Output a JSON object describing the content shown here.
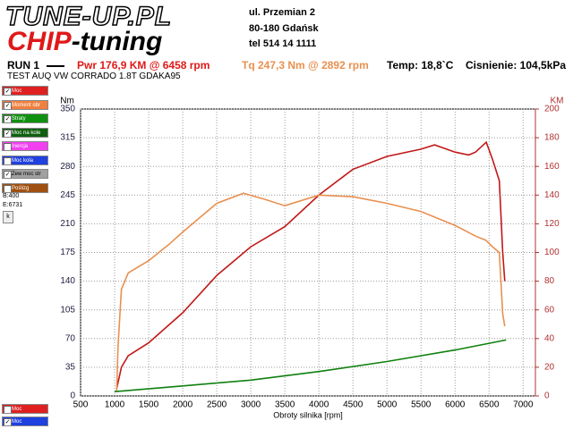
{
  "header": {
    "logo_top": "TUNE-UP.PL",
    "logo_chip": "CHIP",
    "logo_tuning": "-tuning",
    "address": [
      "ul. Przemian 2",
      "80-180 Gdańsk",
      "tel 514 14 1111"
    ],
    "run": "RUN 1",
    "power_summary": "Pwr  176,9 KM @ 6458 rpm",
    "torque_summary": "Tq 247,3 Nm @ 2892 rpm",
    "temperature": "Temp: 18,8`C",
    "pressure": "Cisnienie: 104,5kPa",
    "test_name": "TEST AUQ VW CORRADO 1.8T GDAKA95"
  },
  "panel": {
    "items": [
      {
        "label": "Moc",
        "color": "#e02020",
        "checked": true
      },
      {
        "label": "Moment obr",
        "color": "#f08040",
        "checked": true
      },
      {
        "label": "Straty",
        "color": "#109010",
        "checked": true
      },
      {
        "label": "Moc na kole",
        "color": "#106010",
        "checked": true
      },
      {
        "label": "Inercja",
        "color": "#f040f0",
        "checked": false
      },
      {
        "label": "Moc kola",
        "color": "#2040e0",
        "checked": false
      },
      {
        "label": "Zew moc str",
        "color": "#a0a0a0",
        "checked": true
      },
      {
        "label": "Poślizg",
        "color": "#a05010",
        "checked": false
      }
    ],
    "begin": "B:400",
    "end": "E:6731",
    "button": "k",
    "bottom": [
      {
        "label": "Moc",
        "color": "#e02020",
        "checked": false
      },
      {
        "label": "Moc",
        "color": "#2040e0",
        "checked": true
      }
    ]
  },
  "chart_data": {
    "type": "line",
    "xlabel": "Obroty silnika [rpm]",
    "ylabel": "Nm",
    "y2label": "KM",
    "xlim": [
      500,
      7180
    ],
    "xticks": [
      500,
      1000,
      1500,
      2000,
      2500,
      3000,
      3500,
      4000,
      4500,
      5000,
      5500,
      6000,
      6500,
      7000
    ],
    "ylim": [
      0,
      350
    ],
    "yticks": [
      0,
      35,
      70,
      105,
      140,
      175,
      210,
      245,
      280,
      315,
      350
    ],
    "y2lim": [
      0,
      200
    ],
    "y2ticks": [
      0,
      20,
      40,
      60,
      80,
      100,
      120,
      140,
      160,
      180,
      200
    ],
    "grid": true,
    "series": [
      {
        "name": "Moc",
        "color": "#c01818",
        "axis": "y2",
        "x": [
          1030,
          1100,
          1200,
          1500,
          2000,
          2500,
          3000,
          3500,
          4000,
          4500,
          5000,
          5500,
          5700,
          6000,
          6200,
          6300,
          6458,
          6550,
          6650,
          6700,
          6730
        ],
        "values": [
          5,
          20,
          28,
          37,
          58,
          84,
          104,
          118,
          140,
          158,
          167,
          172,
          175,
          170,
          168,
          170,
          176.9,
          165,
          150,
          100,
          80
        ]
      },
      {
        "name": "Moment obr",
        "color": "#e89050",
        "x": [
          1030,
          1050,
          1100,
          1200,
          1500,
          1800,
          2000,
          2500,
          2892,
          3200,
          3500,
          4000,
          4500,
          5000,
          5500,
          6000,
          6300,
          6450,
          6550,
          6650,
          6700,
          6730
        ],
        "values": [
          5,
          60,
          130,
          150,
          165,
          185,
          200,
          235,
          247.3,
          240,
          232,
          245,
          243,
          235,
          225,
          208,
          195,
          190,
          182,
          175,
          100,
          85
        ]
      },
      {
        "name": "Straty",
        "color": "#108010",
        "axis": "y2",
        "x": [
          1000,
          2000,
          3000,
          4000,
          5000,
          6000,
          6750
        ],
        "values": [
          3,
          7,
          11,
          17,
          24,
          32,
          39
        ]
      }
    ]
  }
}
